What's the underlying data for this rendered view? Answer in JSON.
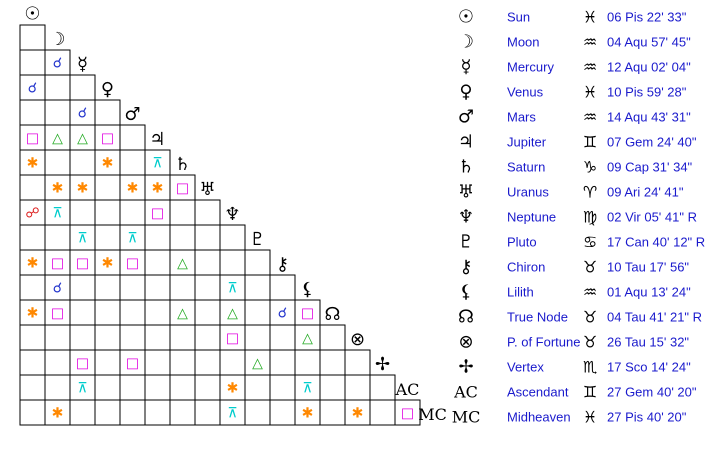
{
  "bodies": [
    {
      "glyph": "☉",
      "name": "Sun",
      "sign": "♓",
      "position": "06 Pis 22' 33\""
    },
    {
      "glyph": "☽",
      "name": "Moon",
      "sign": "♒",
      "position": "04 Aqu 57' 45\""
    },
    {
      "glyph": "☿",
      "name": "Mercury",
      "sign": "♒",
      "position": "12 Aqu 02' 04\""
    },
    {
      "glyph": "♀",
      "name": "Venus",
      "sign": "♓",
      "position": "10 Pis 59' 28\""
    },
    {
      "glyph": "♂",
      "name": "Mars",
      "sign": "♒",
      "position": "14 Aqu 43' 31\""
    },
    {
      "glyph": "♃",
      "name": "Jupiter",
      "sign": "♊",
      "position": "07 Gem 24' 40\""
    },
    {
      "glyph": "♄",
      "name": "Saturn",
      "sign": "♑",
      "position": "09 Cap 31' 34\""
    },
    {
      "glyph": "♅",
      "name": "Uranus",
      "sign": "♈",
      "position": "09 Ari 24' 41\""
    },
    {
      "glyph": "♆",
      "name": "Neptune",
      "sign": "♍",
      "position": "02 Vir 05' 41\" R"
    },
    {
      "glyph": "♇",
      "name": "Pluto",
      "sign": "♋",
      "position": "17 Can 40' 12\" R"
    },
    {
      "glyph": "⚷",
      "name": "Chiron",
      "sign": "♉",
      "position": "10 Tau 17' 56\""
    },
    {
      "glyph": "⚸",
      "name": "Lilith",
      "sign": "♒",
      "position": "01 Aqu 13' 24\""
    },
    {
      "glyph": "☊",
      "name": "True Node",
      "sign": "♉",
      "position": "04 Tau 41' 21\" R"
    },
    {
      "glyph": "⊗",
      "name": "P. of Fortune",
      "sign": "♉",
      "position": "26 Tau 15' 32\""
    },
    {
      "glyph": "✢",
      "name": "Vertex",
      "sign": "♏",
      "position": "17 Sco 14' 24\""
    },
    {
      "glyph": "AC",
      "name": "Ascendant",
      "sign": "♊",
      "position": "27 Gem 40' 20\""
    },
    {
      "glyph": "MC",
      "name": "Midheaven",
      "sign": "♓",
      "position": "27 Pis 40' 20\""
    }
  ],
  "aspect_grid": [
    [
      null
    ],
    [
      null,
      {
        "glyph": "☌",
        "color": "#2233cc"
      }
    ],
    [
      {
        "glyph": "☌",
        "color": "#2233cc"
      },
      null,
      null
    ],
    [
      null,
      null,
      {
        "glyph": "☌",
        "color": "#2233cc"
      },
      null
    ],
    [
      {
        "glyph": "□",
        "color": "#e000e0"
      },
      {
        "glyph": "△",
        "color": "#22aa22"
      },
      {
        "glyph": "△",
        "color": "#22aa22"
      },
      {
        "glyph": "□",
        "color": "#e000e0"
      },
      null
    ],
    [
      {
        "glyph": "✱",
        "color": "#ff8800"
      },
      null,
      null,
      {
        "glyph": "✱",
        "color": "#ff8800"
      },
      null,
      {
        "glyph": "⊼",
        "color": "#00cccc"
      }
    ],
    [
      null,
      {
        "glyph": "✱",
        "color": "#ff8800"
      },
      {
        "glyph": "✱",
        "color": "#ff8800"
      },
      null,
      {
        "glyph": "✱",
        "color": "#ff8800"
      },
      {
        "glyph": "✱",
        "color": "#ff8800"
      },
      {
        "glyph": "□",
        "color": "#e000e0"
      }
    ],
    [
      {
        "glyph": "☍",
        "color": "#dd2222"
      },
      {
        "glyph": "⊼",
        "color": "#00cccc"
      },
      null,
      null,
      null,
      {
        "glyph": "□",
        "color": "#e000e0"
      },
      null,
      null
    ],
    [
      null,
      null,
      {
        "glyph": "⊼",
        "color": "#00cccc"
      },
      null,
      {
        "glyph": "⊼",
        "color": "#00cccc"
      },
      null,
      null,
      null,
      null
    ],
    [
      {
        "glyph": "✱",
        "color": "#ff8800"
      },
      {
        "glyph": "□",
        "color": "#e000e0"
      },
      {
        "glyph": "□",
        "color": "#e000e0"
      },
      {
        "glyph": "✱",
        "color": "#ff8800"
      },
      {
        "glyph": "□",
        "color": "#e000e0"
      },
      null,
      {
        "glyph": "△",
        "color": "#22aa22"
      },
      null,
      null,
      null
    ],
    [
      null,
      {
        "glyph": "☌",
        "color": "#2233cc"
      },
      null,
      null,
      null,
      null,
      null,
      null,
      {
        "glyph": "⊼",
        "color": "#00cccc"
      },
      null,
      null
    ],
    [
      {
        "glyph": "✱",
        "color": "#ff8800"
      },
      {
        "glyph": "□",
        "color": "#e000e0"
      },
      null,
      null,
      null,
      null,
      {
        "glyph": "△",
        "color": "#22aa22"
      },
      null,
      {
        "glyph": "△",
        "color": "#22aa22"
      },
      null,
      {
        "glyph": "☌",
        "color": "#2233cc"
      },
      {
        "glyph": "□",
        "color": "#e000e0"
      }
    ],
    [
      null,
      null,
      null,
      null,
      null,
      null,
      null,
      null,
      {
        "glyph": "□",
        "color": "#e000e0"
      },
      null,
      null,
      {
        "glyph": "△",
        "color": "#22aa22"
      },
      null
    ],
    [
      null,
      null,
      {
        "glyph": "□",
        "color": "#e000e0"
      },
      null,
      {
        "glyph": "□",
        "color": "#e000e0"
      },
      null,
      null,
      null,
      null,
      {
        "glyph": "△",
        "color": "#22aa22"
      },
      null,
      null,
      null,
      null
    ],
    [
      null,
      null,
      {
        "glyph": "⊼",
        "color": "#00cccc"
      },
      null,
      null,
      null,
      null,
      null,
      {
        "glyph": "✱",
        "color": "#ff8800"
      },
      null,
      null,
      {
        "glyph": "⊼",
        "color": "#00cccc"
      },
      null,
      null,
      null
    ],
    [
      null,
      {
        "glyph": "✱",
        "color": "#ff8800"
      },
      null,
      null,
      null,
      null,
      null,
      null,
      {
        "glyph": "⊼",
        "color": "#00cccc"
      },
      null,
      null,
      {
        "glyph": "✱",
        "color": "#ff8800"
      },
      null,
      {
        "glyph": "✱",
        "color": "#ff8800"
      },
      null,
      {
        "glyph": "□",
        "color": "#e000e0"
      }
    ]
  ]
}
